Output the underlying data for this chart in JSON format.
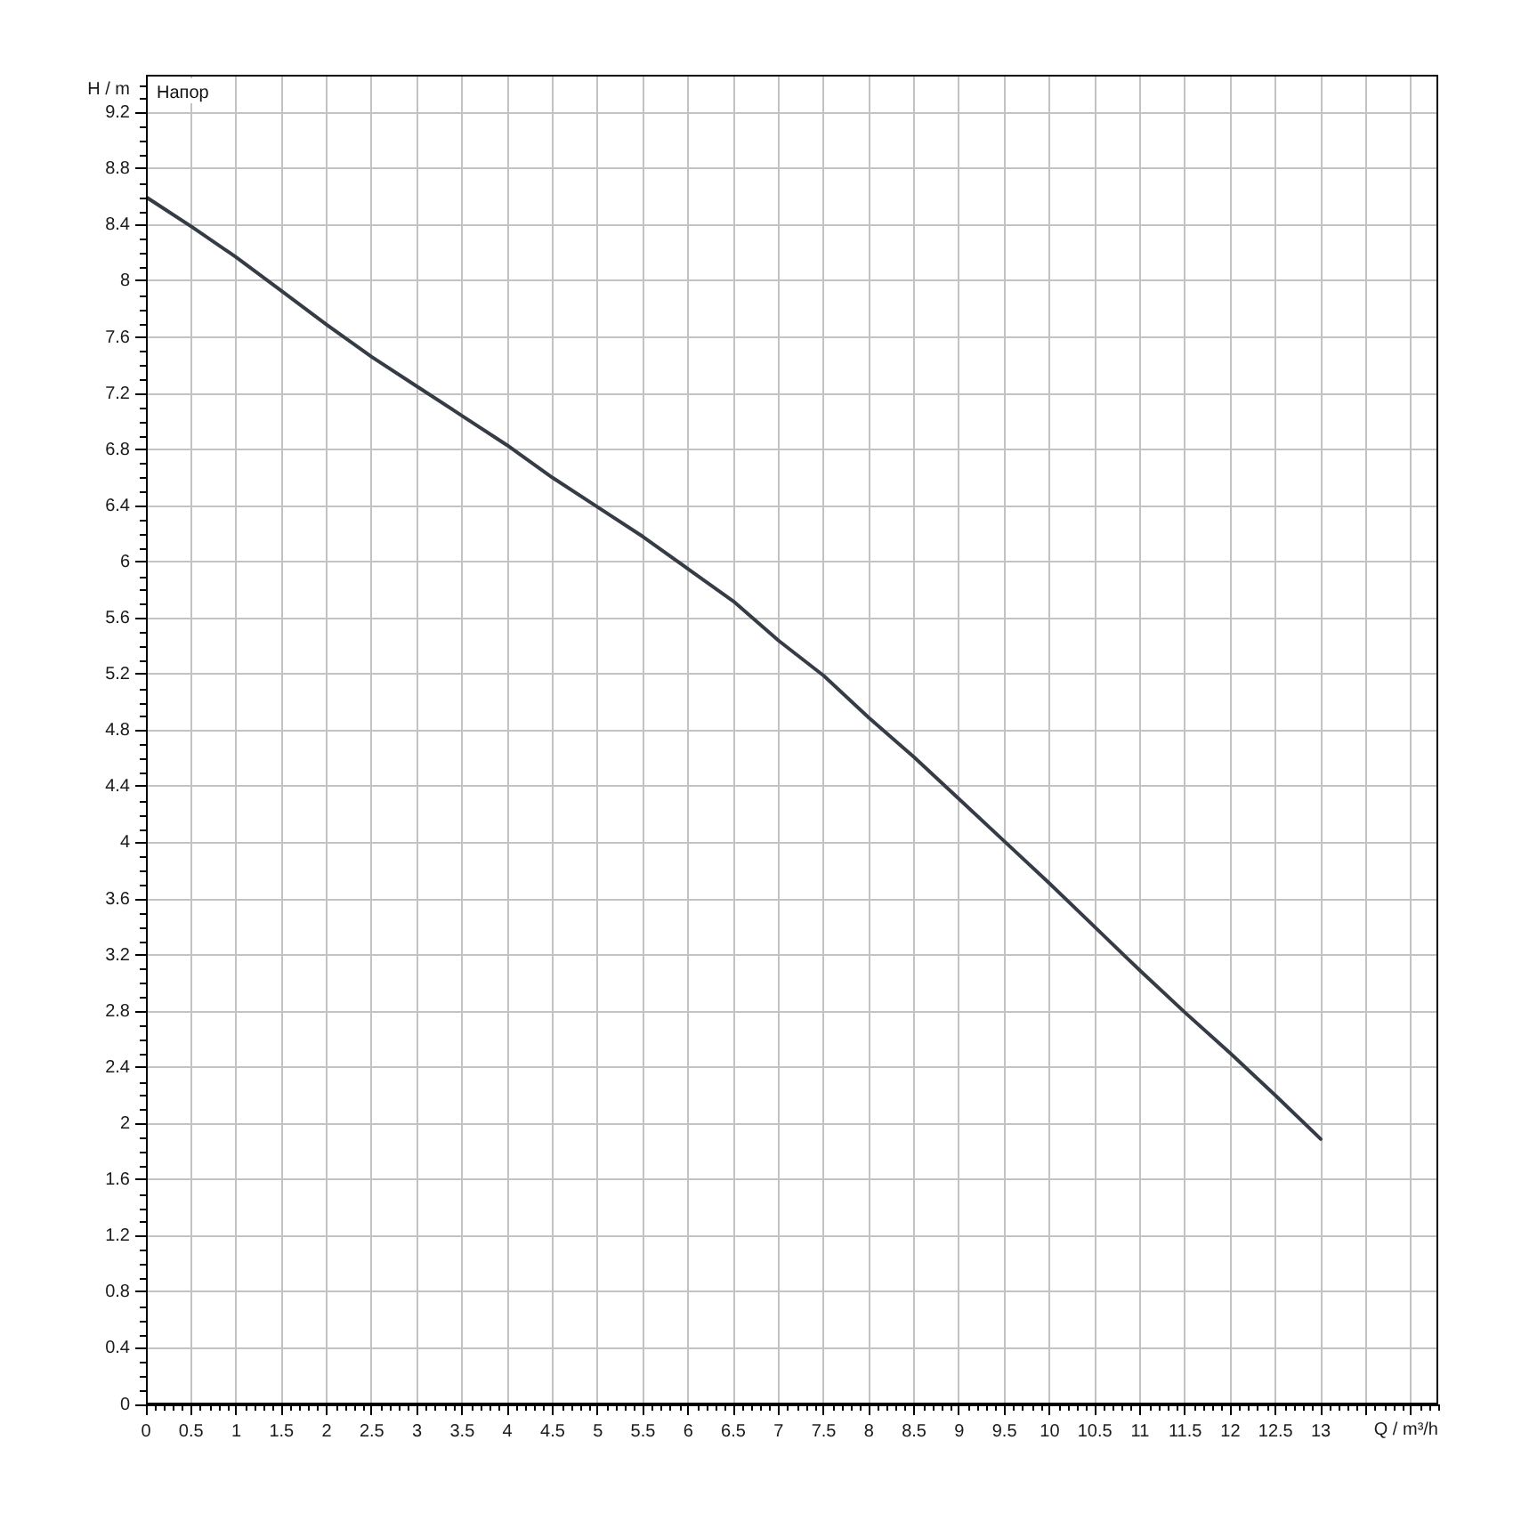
{
  "chart_data": {
    "type": "line",
    "title": "Напор",
    "xlabel": "Q / m³/h",
    "ylabel": "H / m",
    "x": [
      0,
      0.5,
      1,
      1.5,
      2,
      2.5,
      3,
      3.5,
      4,
      4.5,
      5,
      5.5,
      6,
      6.5,
      7,
      7.5,
      8,
      8.5,
      9,
      9.5,
      10,
      10.5,
      11,
      11.5,
      12,
      12.5,
      13
    ],
    "series": [
      {
        "color": "#353c45",
        "values": [
          8.6,
          8.39,
          8.17,
          7.93,
          7.69,
          7.46,
          7.25,
          7.04,
          6.83,
          6.6,
          6.39,
          6.18,
          5.95,
          5.72,
          5.44,
          5.19,
          4.89,
          4.61,
          4.31,
          4.01,
          3.71,
          3.4,
          3.09,
          2.79,
          2.5,
          2.2,
          1.89
        ]
      }
    ],
    "xlim": [
      0,
      14.3
    ],
    "ylim": [
      0,
      9.47
    ],
    "xticks": [
      0,
      0.5,
      1,
      1.5,
      2,
      2.5,
      3,
      3.5,
      4,
      4.5,
      5,
      5.5,
      6,
      6.5,
      7,
      7.5,
      8,
      8.5,
      9,
      9.5,
      10,
      10.5,
      11,
      11.5,
      12,
      12.5,
      13,
      {
        "value": 13.5,
        "label": null
      },
      {
        "value": 14,
        "label": null
      }
    ],
    "yticks": [
      0,
      0.4,
      0.8,
      1.2,
      1.6,
      2,
      2.4,
      2.8,
      3.2,
      3.6,
      4,
      4.4,
      4.8,
      5.2,
      5.6,
      6,
      6.4,
      6.8,
      7.2,
      7.6,
      8,
      8.4,
      8.8,
      9.2
    ],
    "grid": true,
    "marker": "none",
    "line_style": "solid"
  }
}
